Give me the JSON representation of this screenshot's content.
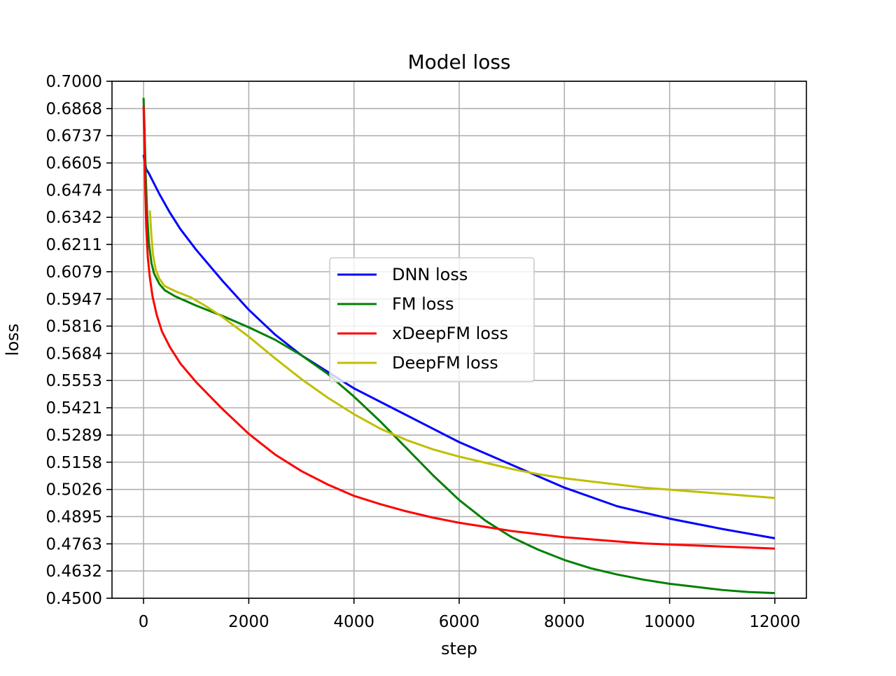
{
  "chart_data": {
    "type": "line",
    "title": "Model loss",
    "xlabel": "step",
    "ylabel": "loss",
    "xlim": [
      -600,
      12600
    ],
    "ylim": [
      0.45,
      0.7
    ],
    "xticks": [
      0,
      2000,
      4000,
      6000,
      8000,
      10000,
      12000
    ],
    "xtick_labels": [
      "0",
      "2000",
      "4000",
      "6000",
      "8000",
      "10000",
      "12000"
    ],
    "yticks": [
      0.45,
      0.4632,
      0.4763,
      0.4895,
      0.5026,
      0.5158,
      0.5289,
      0.5421,
      0.5553,
      0.5684,
      0.5816,
      0.5947,
      0.6079,
      0.6211,
      0.6342,
      0.6474,
      0.6605,
      0.6737,
      0.6868,
      0.7
    ],
    "ytick_labels": [
      "0.4500",
      "0.4632",
      "0.4763",
      "0.4895",
      "0.5026",
      "0.5158",
      "0.5289",
      "0.5421",
      "0.5553",
      "0.5684",
      "0.5816",
      "0.5947",
      "0.6079",
      "0.6211",
      "0.6342",
      "0.6474",
      "0.6605",
      "0.6737",
      "0.6868",
      "0.7000"
    ],
    "grid": true,
    "legend_position": "center",
    "series": [
      {
        "name": "DNN loss",
        "color": "#0000ff",
        "x": [
          0,
          50,
          100,
          200,
          300,
          500,
          700,
          1000,
          1500,
          2000,
          2500,
          3000,
          3500,
          4000,
          5000,
          6000,
          7000,
          8000,
          9000,
          10000,
          11000,
          12000
        ],
        "y": [
          0.6645,
          0.6575,
          0.6555,
          0.6505,
          0.6455,
          0.6365,
          0.6285,
          0.6185,
          0.6035,
          0.5895,
          0.5775,
          0.5675,
          0.5595,
          0.5515,
          0.5385,
          0.5255,
          0.5145,
          0.5035,
          0.4945,
          0.4885,
          0.4835,
          0.479
        ]
      },
      {
        "name": "FM loss",
        "color": "#008000",
        "x": [
          0,
          20,
          40,
          70,
          100,
          150,
          200,
          300,
          400,
          600,
          1000,
          1500,
          2000,
          2500,
          3000,
          3500,
          4000,
          4500,
          5000,
          5500,
          6000,
          6500,
          7000,
          7500,
          8000,
          8500,
          9000,
          9500,
          10000,
          10500,
          11000,
          11500,
          12000
        ],
        "y": [
          0.692,
          0.676,
          0.655,
          0.635,
          0.622,
          0.612,
          0.607,
          0.602,
          0.599,
          0.596,
          0.5915,
          0.5865,
          0.581,
          0.575,
          0.5675,
          0.5585,
          0.5475,
          0.5355,
          0.5225,
          0.5095,
          0.4975,
          0.4875,
          0.4795,
          0.4735,
          0.4685,
          0.4645,
          0.4615,
          0.459,
          0.457,
          0.4555,
          0.454,
          0.453,
          0.4525
        ]
      },
      {
        "name": "xDeepFM loss",
        "color": "#ff0000",
        "x": [
          0,
          15,
          30,
          50,
          80,
          120,
          170,
          250,
          350,
          500,
          700,
          1000,
          1500,
          2000,
          2500,
          3000,
          3500,
          4000,
          4500,
          5000,
          5500,
          6000,
          6500,
          7000,
          7500,
          8000,
          8500,
          9000,
          9500,
          10000,
          10500,
          11000,
          11500,
          12000
        ],
        "y": [
          0.688,
          0.67,
          0.65,
          0.63,
          0.615,
          0.605,
          0.596,
          0.587,
          0.579,
          0.5715,
          0.5635,
          0.5545,
          0.5415,
          0.5295,
          0.5195,
          0.5115,
          0.505,
          0.4995,
          0.4955,
          0.492,
          0.489,
          0.4865,
          0.4845,
          0.4825,
          0.481,
          0.4795,
          0.4785,
          0.4775,
          0.4765,
          0.476,
          0.4755,
          0.475,
          0.4745,
          0.474
        ]
      },
      {
        "name": "DeepFM loss",
        "color": "#bfbf00",
        "x": [
          120,
          150,
          180,
          230,
          300,
          400,
          600,
          900,
          1200,
          1500,
          2000,
          2500,
          3000,
          3500,
          4000,
          4500,
          5000,
          5500,
          6000,
          6500,
          7000,
          7500,
          8000,
          8500,
          9000,
          9500,
          10000,
          10500,
          11000,
          11500,
          12000
        ],
        "y": [
          0.6375,
          0.625,
          0.616,
          0.609,
          0.6045,
          0.601,
          0.5985,
          0.5955,
          0.591,
          0.586,
          0.5765,
          0.566,
          0.556,
          0.547,
          0.539,
          0.532,
          0.5265,
          0.522,
          0.5185,
          0.5155,
          0.5125,
          0.51,
          0.508,
          0.5065,
          0.505,
          0.5035,
          0.5025,
          0.5015,
          0.5005,
          0.4995,
          0.4985
        ]
      }
    ]
  }
}
